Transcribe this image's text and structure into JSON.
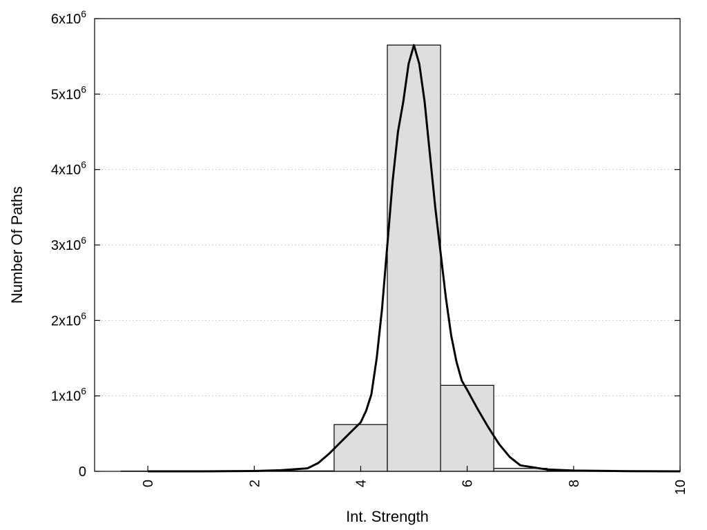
{
  "chart_data": {
    "type": "bar",
    "xlabel": "Int. Strength",
    "ylabel": "Number Of Paths",
    "xlim": [
      -1,
      10
    ],
    "ylim": [
      0,
      6000000
    ],
    "x_ticks": [
      0,
      2,
      4,
      6,
      8,
      10
    ],
    "y_ticks": [
      {
        "value": 0,
        "base": "0",
        "exp": ""
      },
      {
        "value": 1000000,
        "base": "1x10",
        "exp": "6"
      },
      {
        "value": 2000000,
        "base": "2x10",
        "exp": "6"
      },
      {
        "value": 3000000,
        "base": "3x10",
        "exp": "6"
      },
      {
        "value": 4000000,
        "base": "4x10",
        "exp": "6"
      },
      {
        "value": 5000000,
        "base": "5x10",
        "exp": "6"
      },
      {
        "value": 6000000,
        "base": "6x10",
        "exp": "6"
      }
    ],
    "bin_width": 1,
    "bins": [
      {
        "center": 0,
        "value": 4000
      },
      {
        "center": 1,
        "value": 4000
      },
      {
        "center": 2,
        "value": 4000
      },
      {
        "center": 3,
        "value": 6000
      },
      {
        "center": 4,
        "value": 620000
      },
      {
        "center": 5,
        "value": 5650000
      },
      {
        "center": 6,
        "value": 1140000
      },
      {
        "center": 7,
        "value": 40000
      },
      {
        "center": 8,
        "value": 4000
      },
      {
        "center": 9,
        "value": 2000
      },
      {
        "center": 10,
        "value": 1000
      }
    ],
    "fit_curve": {
      "x": [
        0,
        1,
        2,
        2.5,
        3,
        3.2,
        3.4,
        3.6,
        3.8,
        4,
        4.1,
        4.2,
        4.3,
        4.4,
        4.5,
        4.6,
        4.7,
        4.8,
        4.9,
        5,
        5.1,
        5.2,
        5.3,
        5.4,
        5.5,
        5.6,
        5.7,
        5.8,
        5.9,
        6,
        6.2,
        6.4,
        6.6,
        6.8,
        7,
        7.5,
        8,
        9,
        10
      ],
      "y": [
        0,
        0,
        5000,
        15000,
        40000,
        110000,
        230000,
        370000,
        510000,
        650000,
        800000,
        1020000,
        1500000,
        2150000,
        3000000,
        3850000,
        4500000,
        4900000,
        5400000,
        5650000,
        5400000,
        4900000,
        4200000,
        3500000,
        2900000,
        2300000,
        1800000,
        1450000,
        1200000,
        1080000,
        820000,
        580000,
        360000,
        190000,
        80000,
        25000,
        10000,
        3000,
        0
      ]
    },
    "grid": "horizontal-dotted",
    "legend": "none"
  }
}
